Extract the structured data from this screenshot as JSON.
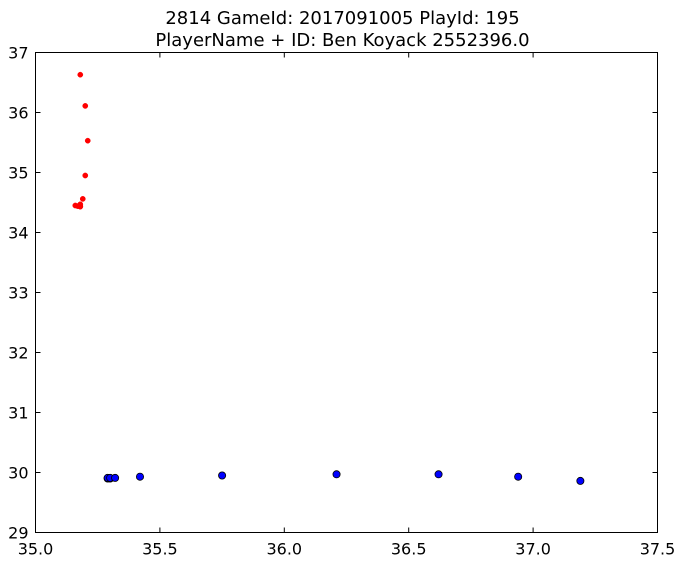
{
  "chart_data": {
    "type": "scatter",
    "title_lines": [
      "2814 GameId: 2017091005 PlayId: 195",
      "PlayerName + ID: Ben Koyack 2552396.0"
    ],
    "xlabel": "",
    "ylabel": "",
    "xlim": [
      35.0,
      37.5
    ],
    "ylim": [
      29,
      37
    ],
    "x_ticks": [
      "35.0",
      "35.5",
      "36.0",
      "36.5",
      "37.0",
      "37.5"
    ],
    "y_ticks": [
      "29",
      "30",
      "31",
      "32",
      "33",
      "34",
      "35",
      "36",
      "37"
    ],
    "grid": false,
    "series": [
      {
        "color": "#ff0000",
        "marker": "small-dot",
        "points": [
          {
            "x": 35.18,
            "y": 36.63
          },
          {
            "x": 35.2,
            "y": 36.11
          },
          {
            "x": 35.21,
            "y": 35.53
          },
          {
            "x": 35.2,
            "y": 34.95
          },
          {
            "x": 35.19,
            "y": 34.56
          },
          {
            "x": 35.18,
            "y": 34.47
          },
          {
            "x": 35.16,
            "y": 34.45
          },
          {
            "x": 35.17,
            "y": 34.44
          },
          {
            "x": 35.18,
            "y": 34.43
          },
          {
            "x": 35.18,
            "y": 34.44
          }
        ]
      },
      {
        "color": "#0000ff",
        "marker": "circle",
        "points": [
          {
            "x": 35.29,
            "y": 29.9
          },
          {
            "x": 35.3,
            "y": 29.9
          },
          {
            "x": 35.29,
            "y": 29.91
          },
          {
            "x": 35.3,
            "y": 29.91
          },
          {
            "x": 35.32,
            "y": 29.91
          },
          {
            "x": 35.42,
            "y": 29.93
          },
          {
            "x": 35.75,
            "y": 29.95
          },
          {
            "x": 36.21,
            "y": 29.97
          },
          {
            "x": 36.62,
            "y": 29.97
          },
          {
            "x": 36.94,
            "y": 29.93
          },
          {
            "x": 37.19,
            "y": 29.86
          }
        ]
      }
    ]
  }
}
